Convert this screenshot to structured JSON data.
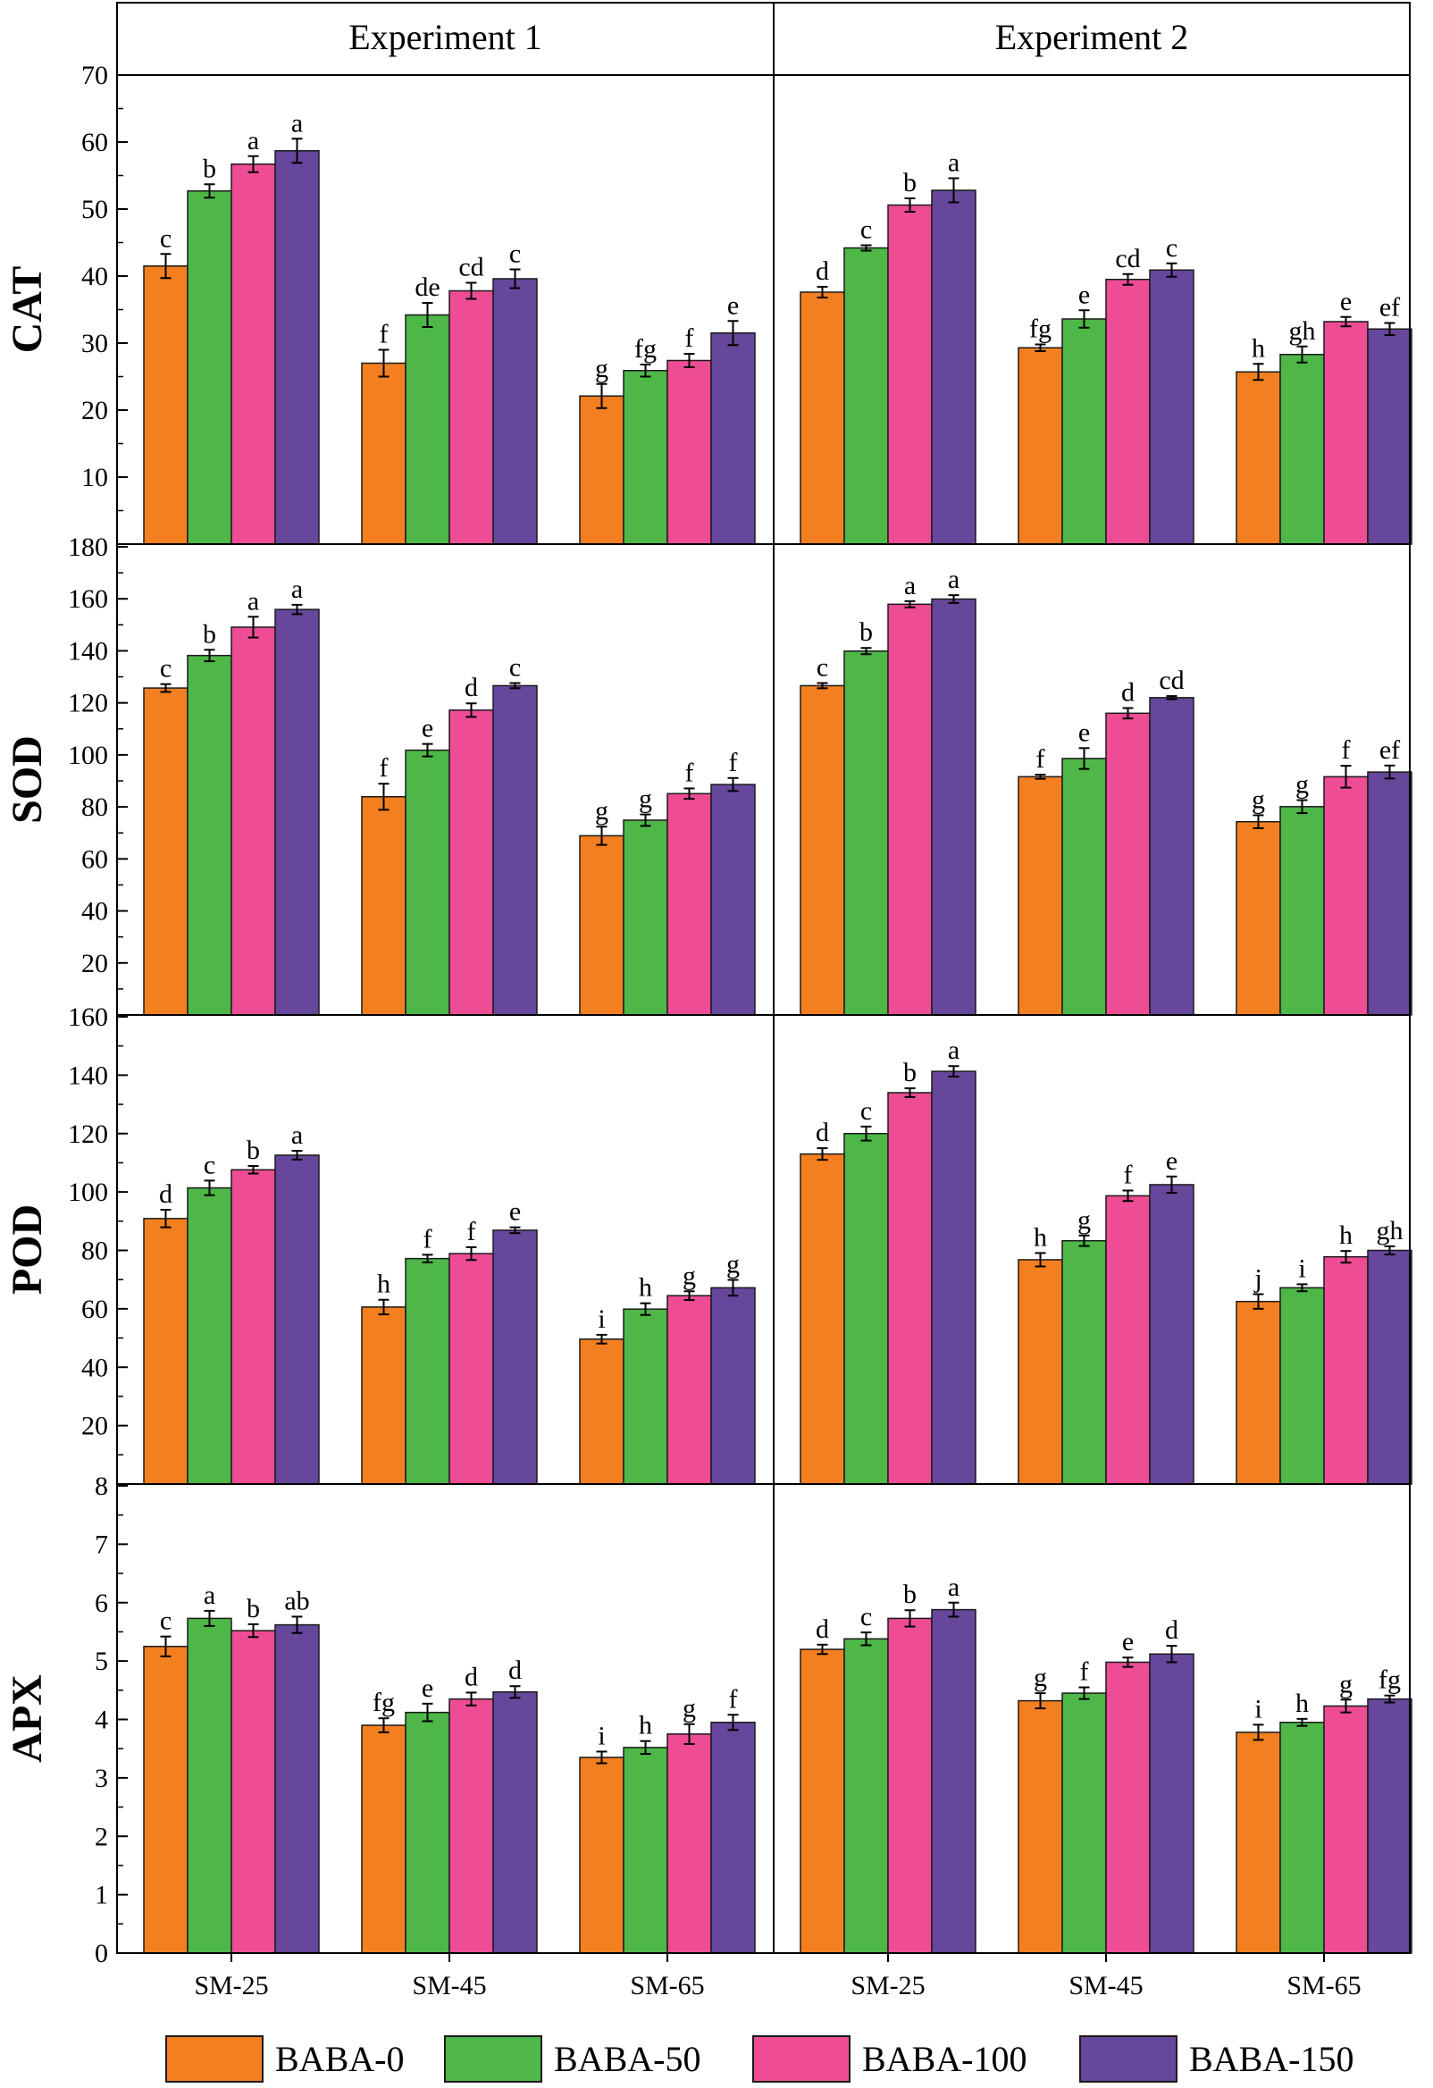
{
  "chart_data": {
    "type": "bar",
    "columns": [
      "Experiment 1",
      "Experiment 2"
    ],
    "categories": [
      "SM-25",
      "SM-45",
      "SM-65"
    ],
    "series_names": [
      "BABA-0",
      "BABA-50",
      "BABA-100",
      "BABA-150"
    ],
    "series_colors": [
      "#F47F20",
      "#4EB748",
      "#EE4D96",
      "#67479B"
    ],
    "legend_position": "bottom",
    "grid": false,
    "panels": [
      {
        "ylabel": "CAT",
        "ylim": [
          0,
          70
        ],
        "yticks": [
          10,
          20,
          30,
          40,
          50,
          60,
          70
        ],
        "experiments": [
          {
            "values": [
              [
                41.5,
                52.7,
                56.7,
                58.7
              ],
              [
                27.0,
                34.2,
                37.8,
                39.6
              ],
              [
                22.1,
                25.9,
                27.4,
                31.5
              ]
            ],
            "errors": [
              [
                1.8,
                1.0,
                1.2,
                1.8
              ],
              [
                2.0,
                1.8,
                1.2,
                1.4
              ],
              [
                1.8,
                0.9,
                1.0,
                1.8
              ]
            ],
            "letters": [
              [
                "c",
                "b",
                "a",
                "a"
              ],
              [
                "f",
                "de",
                "cd",
                "c"
              ],
              [
                "g",
                "fg",
                "f",
                "e"
              ]
            ]
          },
          {
            "values": [
              [
                37.6,
                44.2,
                50.6,
                52.8
              ],
              [
                29.3,
                33.6,
                39.5,
                40.9
              ],
              [
                25.7,
                28.3,
                33.2,
                32.1
              ]
            ],
            "errors": [
              [
                0.8,
                0.4,
                1.0,
                1.8
              ],
              [
                0.5,
                1.3,
                0.8,
                1.0
              ],
              [
                1.2,
                1.2,
                0.7,
                0.9
              ]
            ],
            "letters": [
              [
                "d",
                "c",
                "b",
                "a"
              ],
              [
                "fg",
                "e",
                "cd",
                "c"
              ],
              [
                "h",
                "gh",
                "e",
                "ef"
              ]
            ]
          }
        ]
      },
      {
        "ylabel": "SOD",
        "ylim": [
          0,
          180
        ],
        "yticks": [
          20,
          40,
          60,
          80,
          100,
          120,
          140,
          160,
          180
        ],
        "experiments": [
          {
            "values": [
              [
                125.7,
                138.2,
                149.1,
                155.9
              ],
              [
                83.9,
                101.8,
                117.2,
                126.6
              ],
              [
                68.9,
                74.9,
                85.1,
                88.6
              ]
            ],
            "errors": [
              [
                1.5,
                2.2,
                4.0,
                1.8
              ],
              [
                5.0,
                2.4,
                2.6,
                1.0
              ],
              [
                3.5,
                2.2,
                2.0,
                2.5
              ]
            ],
            "letters": [
              [
                "c",
                "b",
                "a",
                "a"
              ],
              [
                "f",
                "e",
                "d",
                "c"
              ],
              [
                "g",
                "g",
                "f",
                "f"
              ]
            ]
          },
          {
            "values": [
              [
                126.6,
                139.9,
                157.9,
                159.9
              ],
              [
                91.6,
                98.6,
                116.0,
                122.0
              ],
              [
                74.3,
                80.1,
                91.6,
                93.4
              ]
            ],
            "errors": [
              [
                1.0,
                1.2,
                1.2,
                1.5
              ],
              [
                0.8,
                4.0,
                2.0,
                0.6
              ],
              [
                2.5,
                2.5,
                4.2,
                2.5
              ]
            ],
            "letters": [
              [
                "c",
                "b",
                "a",
                "a"
              ],
              [
                "f",
                "e",
                "d",
                "cd"
              ],
              [
                "g",
                "g",
                "f",
                "ef"
              ]
            ]
          }
        ]
      },
      {
        "ylabel": "POD",
        "ylim": [
          0,
          160
        ],
        "yticks": [
          20,
          40,
          60,
          80,
          100,
          120,
          140,
          160
        ],
        "experiments": [
          {
            "values": [
              [
                90.9,
                101.4,
                107.6,
                112.6
              ],
              [
                60.6,
                77.2,
                78.9,
                86.9
              ],
              [
                49.6,
                59.9,
                64.5,
                67.2
              ]
            ],
            "errors": [
              [
                3.0,
                2.5,
                1.3,
                1.5
              ],
              [
                2.5,
                1.3,
                2.2,
                1.0
              ],
              [
                1.5,
                2.0,
                1.5,
                2.7
              ]
            ],
            "letters": [
              [
                "d",
                "c",
                "b",
                "a"
              ],
              [
                "h",
                "f",
                "f",
                "e"
              ],
              [
                "i",
                "h",
                "g",
                "g"
              ]
            ]
          },
          {
            "values": [
              [
                113.0,
                120.0,
                134.0,
                141.3
              ],
              [
                76.8,
                83.3,
                98.7,
                102.5
              ],
              [
                62.5,
                67.2,
                77.8,
                80.0
              ]
            ],
            "errors": [
              [
                2.0,
                2.4,
                1.5,
                1.8
              ],
              [
                2.3,
                1.8,
                1.8,
                2.8
              ],
              [
                2.5,
                1.2,
                2.0,
                1.4
              ]
            ],
            "letters": [
              [
                "d",
                "c",
                "b",
                "a"
              ],
              [
                "h",
                "g",
                "f",
                "e"
              ],
              [
                "j",
                "i",
                "h",
                "gh"
              ]
            ]
          }
        ]
      },
      {
        "ylabel": "APX",
        "ylim": [
          0,
          8
        ],
        "yticks": [
          0,
          1,
          2,
          3,
          4,
          5,
          6,
          7,
          8
        ],
        "experiments": [
          {
            "values": [
              [
                5.25,
                5.73,
                5.52,
                5.62
              ],
              [
                3.9,
                4.12,
                4.35,
                4.47
              ],
              [
                3.35,
                3.52,
                3.75,
                3.95
              ]
            ],
            "errors": [
              [
                0.17,
                0.13,
                0.11,
                0.14
              ],
              [
                0.12,
                0.15,
                0.11,
                0.1
              ],
              [
                0.1,
                0.11,
                0.17,
                0.13
              ]
            ],
            "letters": [
              [
                "c",
                "a",
                "b",
                "ab"
              ],
              [
                "fg",
                "e",
                "d",
                "d"
              ],
              [
                "i",
                "h",
                "g",
                "f"
              ]
            ]
          },
          {
            "values": [
              [
                5.2,
                5.38,
                5.73,
                5.88
              ],
              [
                4.32,
                4.45,
                4.98,
                5.12
              ],
              [
                3.78,
                3.95,
                4.23,
                4.35
              ]
            ],
            "errors": [
              [
                0.08,
                0.11,
                0.14,
                0.12
              ],
              [
                0.13,
                0.1,
                0.08,
                0.14
              ],
              [
                0.13,
                0.06,
                0.11,
                0.06
              ]
            ],
            "letters": [
              [
                "d",
                "c",
                "b",
                "a"
              ],
              [
                "g",
                "f",
                "e",
                "d"
              ],
              [
                "i",
                "h",
                "g",
                "fg"
              ]
            ]
          }
        ]
      }
    ]
  }
}
